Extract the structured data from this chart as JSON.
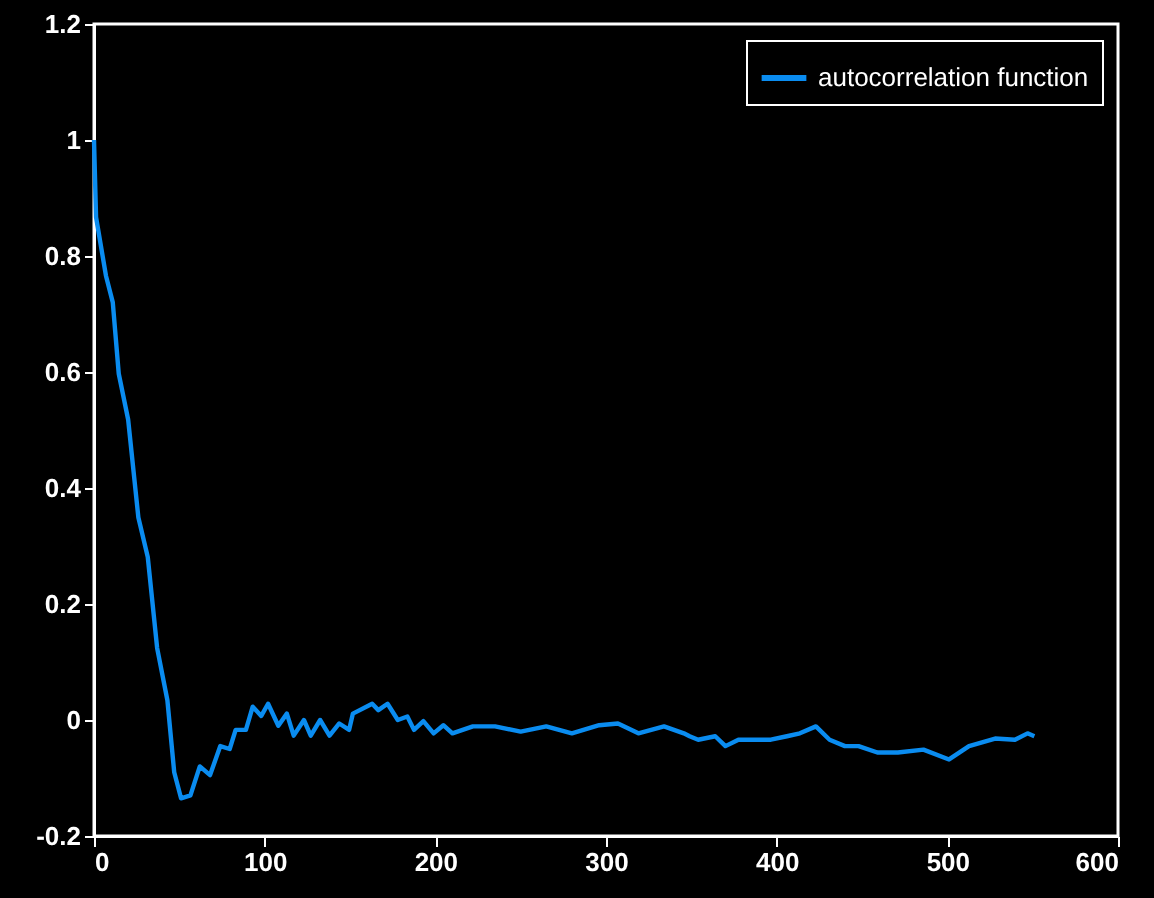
{
  "chart_data": {
    "type": "line",
    "xlim": [
      0,
      600
    ],
    "xticks": [
      0,
      100,
      200,
      300,
      400,
      500,
      600
    ],
    "ylim": [
      -0.2,
      1.2
    ],
    "yticks": [
      -0.2,
      0,
      0.2,
      0.4,
      0.6,
      0.8,
      1,
      1.2
    ],
    "grid": false,
    "legend": "top right",
    "line_style": "solid",
    "marker": "none",
    "series": [
      {
        "name": "autocorrelation function",
        "color": "#0a8cf0",
        "x": [
          0,
          1.2,
          7,
          11,
          14.5,
          20,
          26,
          31.5,
          37,
          43,
          47,
          51,
          56.5,
          62,
          68,
          74,
          79.5,
          83,
          89,
          93,
          98,
          102,
          108,
          113,
          117,
          123,
          127,
          132.5,
          138,
          143.7,
          149.5,
          151.7,
          163,
          166.6,
          172,
          178,
          183.6,
          187.5,
          193,
          199,
          204.7,
          210,
          222,
          235,
          250,
          265,
          280,
          296,
          307,
          319,
          334,
          345.6,
          349,
          354,
          364,
          370,
          377.6,
          387,
          396.6,
          406,
          413.6,
          423,
          431,
          440,
          448,
          459,
          471,
          486,
          501,
          512.7,
          528,
          539.6,
          547,
          551
        ],
        "values": [
          1.0,
          0.867,
          0.766,
          0.72,
          0.597,
          0.518,
          0.349,
          0.281,
          0.124,
          0.034,
          -0.09,
          -0.135,
          -0.13,
          -0.08,
          -0.095,
          -0.045,
          -0.05,
          -0.017,
          -0.017,
          0.023,
          0.007,
          0.028,
          -0.01,
          0.011,
          -0.027,
          0,
          -0.027,
          0,
          -0.027,
          -0.006,
          -0.017,
          0.011,
          0.028,
          0.017,
          0.028,
          0,
          0.006,
          -0.017,
          -0.002,
          -0.023,
          -0.009,
          -0.023,
          -0.011,
          -0.011,
          -0.02,
          -0.011,
          -0.023,
          -0.009,
          -0.006,
          -0.023,
          -0.011,
          -0.023,
          -0.028,
          -0.034,
          -0.028,
          -0.045,
          -0.034,
          -0.034,
          -0.034,
          -0.028,
          -0.023,
          -0.011,
          -0.034,
          -0.045,
          -0.045,
          -0.056,
          -0.056,
          -0.051,
          -0.068,
          -0.045,
          -0.032,
          -0.034,
          -0.023,
          -0.028
        ]
      }
    ]
  }
}
